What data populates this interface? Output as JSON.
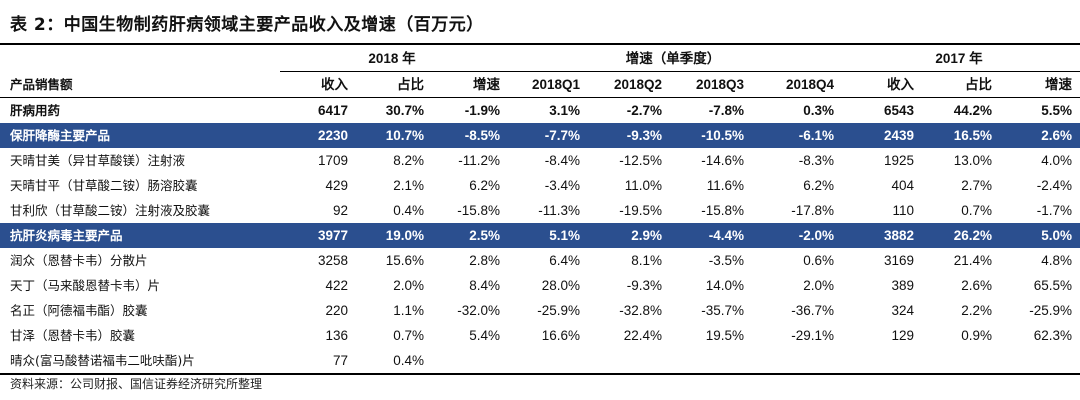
{
  "title": "表 2：中国生物制药肝病领域主要产品收入及增速（百万元）",
  "group_headers": {
    "y2018": "2018 年",
    "growth": "增速（单季度）",
    "y2017": "2017 年"
  },
  "columns": [
    "产品销售额",
    "收入",
    "占比",
    "增速",
    "2018Q1",
    "2018Q2",
    "2018Q3",
    "2018Q4",
    "收入",
    "占比",
    "增速"
  ],
  "rows": [
    {
      "type": "bold",
      "cells": [
        "肝病用药",
        "6417",
        "30.7%",
        "-1.9%",
        "3.1%",
        "-2.7%",
        "-7.8%",
        "0.3%",
        "6543",
        "44.2%",
        "5.5%"
      ]
    },
    {
      "type": "highlight",
      "cells": [
        "保肝降酶主要产品",
        "2230",
        "10.7%",
        "-8.5%",
        "-7.7%",
        "-9.3%",
        "-10.5%",
        "-6.1%",
        "2439",
        "16.5%",
        "2.6%"
      ]
    },
    {
      "type": "normal",
      "cells": [
        "天晴甘美（异甘草酸镁）注射液",
        "1709",
        "8.2%",
        "-11.2%",
        "-8.4%",
        "-12.5%",
        "-14.6%",
        "-8.3%",
        "1925",
        "13.0%",
        "4.0%"
      ]
    },
    {
      "type": "normal",
      "cells": [
        "天晴甘平（甘草酸二铵）肠溶胶囊",
        "429",
        "2.1%",
        "6.2%",
        "-3.4%",
        "11.0%",
        "11.6%",
        "6.2%",
        "404",
        "2.7%",
        "-2.4%"
      ]
    },
    {
      "type": "normal",
      "cells": [
        "甘利欣（甘草酸二铵）注射液及胶囊",
        "92",
        "0.4%",
        "-15.8%",
        "-11.3%",
        "-19.5%",
        "-15.8%",
        "-17.8%",
        "110",
        "0.7%",
        "-1.7%"
      ]
    },
    {
      "type": "highlight",
      "cells": [
        "抗肝炎病毒主要产品",
        "3977",
        "19.0%",
        "2.5%",
        "5.1%",
        "2.9%",
        "-4.4%",
        "-2.0%",
        "3882",
        "26.2%",
        "5.0%"
      ]
    },
    {
      "type": "normal",
      "cells": [
        "润众（恩替卡韦）分散片",
        "3258",
        "15.6%",
        "2.8%",
        "6.4%",
        "8.1%",
        "-3.5%",
        "0.6%",
        "3169",
        "21.4%",
        "4.8%"
      ]
    },
    {
      "type": "normal",
      "cells": [
        "天丁（马来酸恩替卡韦）片",
        "422",
        "2.0%",
        "8.4%",
        "28.0%",
        "-9.3%",
        "14.0%",
        "2.0%",
        "389",
        "2.6%",
        "65.5%"
      ]
    },
    {
      "type": "normal",
      "cells": [
        "名正（阿德福韦酯）胶囊",
        "220",
        "1.1%",
        "-32.0%",
        "-25.9%",
        "-32.8%",
        "-35.7%",
        "-36.7%",
        "324",
        "2.2%",
        "-25.9%"
      ]
    },
    {
      "type": "normal",
      "cells": [
        "甘泽（恩替卡韦）胶囊",
        "136",
        "0.7%",
        "5.4%",
        "16.6%",
        "22.4%",
        "19.5%",
        "-29.1%",
        "129",
        "0.9%",
        "62.3%"
      ]
    },
    {
      "type": "normal",
      "cells": [
        "晴众(富马酸替诺福韦二吡呋酯)片",
        "77",
        "0.4%",
        "",
        "",
        "",
        "",
        "",
        "",
        "",
        ""
      ]
    }
  ],
  "source": "资料来源：公司财报、国信证券经济研究所整理"
}
